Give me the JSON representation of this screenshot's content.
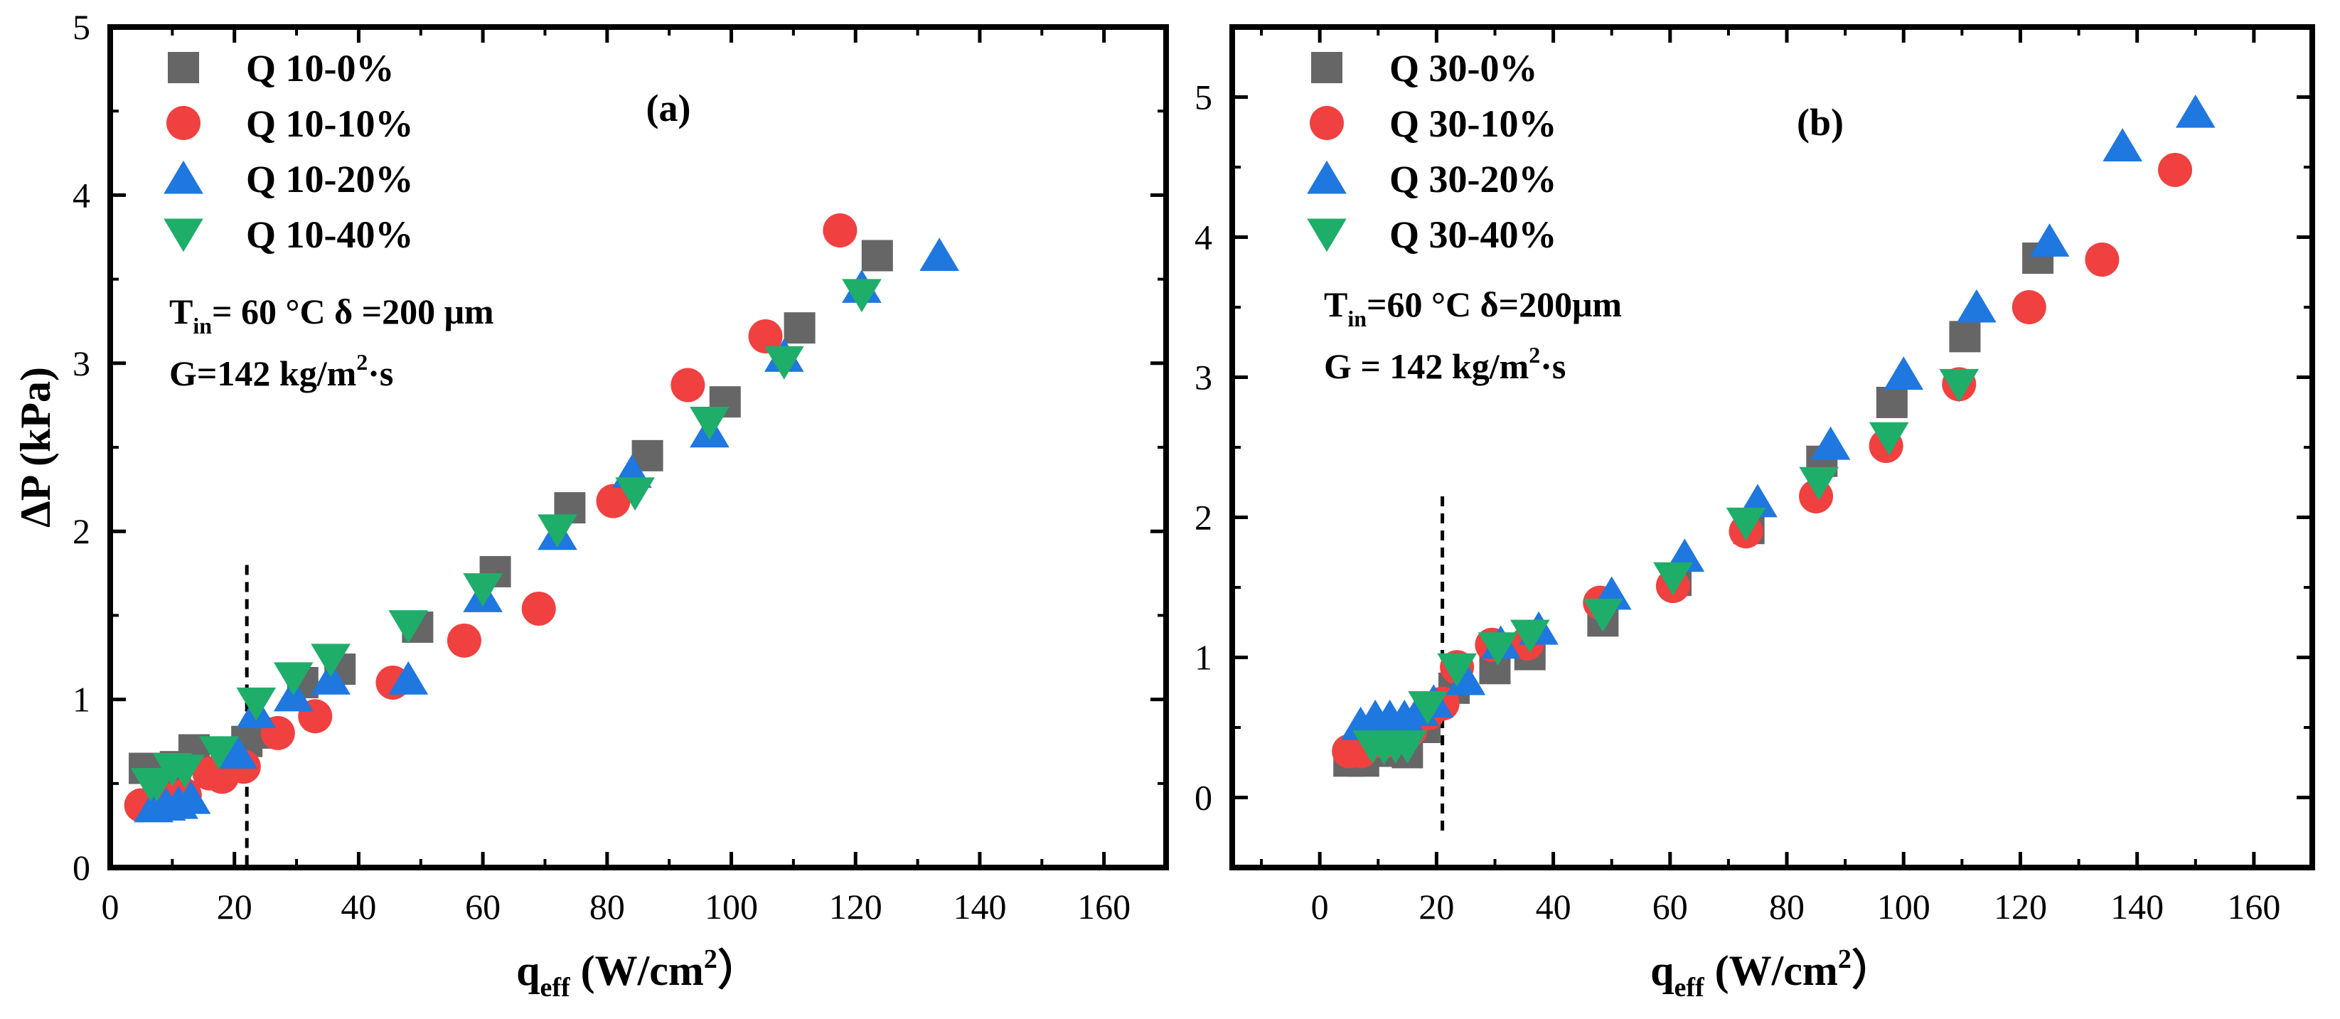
{
  "chart_data": [
    {
      "type": "scatter",
      "panel_label": "(a)",
      "xlabel": {
        "main": "q",
        "sub": "eff",
        "unit_pre": " (W/cm",
        "unit_sup": "2",
        "unit_post": "）"
      },
      "ylabel": "ΔP (kPa)",
      "xlim": [
        0,
        170
      ],
      "ylim": [
        0,
        5
      ],
      "xticks": [
        0,
        20,
        40,
        60,
        80,
        100,
        120,
        140,
        160
      ],
      "yticks": [
        0,
        1,
        2,
        3,
        4,
        5
      ],
      "grid": false,
      "legend_position": "top-left",
      "annotations": {
        "line1": {
          "t": "T",
          "sub": "in",
          "rest": "= 60 °C  δ =200 μm"
        },
        "line2": {
          "pre": "G=142 kg/m",
          "sup": "2",
          "post": "·s"
        }
      },
      "vline_x": 22,
      "vline_ylim": [
        0,
        1.8
      ],
      "series": [
        {
          "name": "Q 10-0%",
          "marker": "square",
          "color": "#666666",
          "points": [
            [
              5.5,
              0.59
            ],
            [
              8,
              0.58
            ],
            [
              10.5,
              0.6
            ],
            [
              13.5,
              0.7
            ],
            [
              20,
              0.68
            ],
            [
              22,
              0.75
            ],
            [
              25,
              0.8
            ],
            [
              31,
              1.1
            ],
            [
              37,
              1.18
            ],
            [
              49.5,
              1.43
            ],
            [
              62,
              1.76
            ],
            [
              74,
              2.14
            ],
            [
              86.5,
              2.45
            ],
            [
              99,
              2.77
            ],
            [
              111,
              3.21
            ],
            [
              123.5,
              3.64
            ]
          ]
        },
        {
          "name": "Q 10-10%",
          "marker": "circle",
          "color": "#f04040",
          "points": [
            [
              5,
              0.37
            ],
            [
              8,
              0.38
            ],
            [
              10.5,
              0.41
            ],
            [
              12,
              0.43
            ],
            [
              16,
              0.56
            ],
            [
              18,
              0.54
            ],
            [
              21.5,
              0.6
            ],
            [
              27,
              0.8
            ],
            [
              33,
              0.9
            ],
            [
              45.5,
              1.1
            ],
            [
              57,
              1.35
            ],
            [
              69,
              1.54
            ],
            [
              81,
              2.18
            ],
            [
              93,
              2.87
            ],
            [
              105.5,
              3.16
            ],
            [
              117.5,
              3.79
            ]
          ]
        },
        {
          "name": "Q 10-20%",
          "marker": "triangle-up",
          "color": "#1f77e0",
          "points": [
            [
              7,
              0.36
            ],
            [
              9,
              0.37
            ],
            [
              11,
              0.38
            ],
            [
              13,
              0.41
            ],
            [
              20.5,
              0.68
            ],
            [
              23.5,
              0.92
            ],
            [
              29.5,
              1.02
            ],
            [
              35.5,
              1.12
            ],
            [
              48,
              1.12
            ],
            [
              60,
              1.61
            ],
            [
              72,
              1.98
            ],
            [
              84,
              2.35
            ],
            [
              96.5,
              2.59
            ],
            [
              108.5,
              3.04
            ],
            [
              121,
              3.45
            ],
            [
              133.5,
              3.64
            ]
          ]
        },
        {
          "name": "Q 10-40%",
          "marker": "triangle-down",
          "color": "#1fae6a",
          "points": [
            [
              6.5,
              0.5
            ],
            [
              7.5,
              0.5
            ],
            [
              10,
              0.59
            ],
            [
              12,
              0.58
            ],
            [
              17.5,
              0.69
            ],
            [
              23.5,
              0.98
            ],
            [
              29.5,
              1.13
            ],
            [
              35.5,
              1.24
            ],
            [
              48,
              1.44
            ],
            [
              60,
              1.66
            ],
            [
              72,
              2.01
            ],
            [
              84.5,
              2.23
            ],
            [
              96.5,
              2.65
            ],
            [
              108.5,
              3.01
            ],
            [
              121,
              3.41
            ]
          ]
        }
      ]
    },
    {
      "type": "scatter",
      "panel_label": "(b)",
      "xlabel": {
        "main": "q",
        "sub": "eff",
        "unit_pre": " (W/cm",
        "unit_sup": "2",
        "unit_post": "）"
      },
      "ylabel": "",
      "xlim": [
        -15,
        170
      ],
      "ylim": [
        -0.5,
        5.5
      ],
      "xticks": [
        0,
        20,
        40,
        60,
        80,
        100,
        120,
        140,
        160
      ],
      "yticks": [
        0,
        1,
        2,
        3,
        4,
        5
      ],
      "grid": false,
      "legend_position": "top-left",
      "annotations": {
        "line1": {
          "t": "T",
          "sub": "in",
          "rest": "=60 °C  δ=200μm"
        },
        "line2": {
          "pre": "G = 142 kg/m",
          "sup": "2",
          "post": "·s"
        }
      },
      "vline_x": 21,
      "vline_ylim": [
        -0.28,
        2.15
      ],
      "series": [
        {
          "name": "Q 30-0%",
          "marker": "square",
          "color": "#666666",
          "points": [
            [
              5,
              0.26
            ],
            [
              7.5,
              0.26
            ],
            [
              10,
              0.33
            ],
            [
              12.5,
              0.33
            ],
            [
              15,
              0.32
            ],
            [
              18,
              0.5
            ],
            [
              23,
              0.78
            ],
            [
              30,
              0.92
            ],
            [
              36,
              1.02
            ],
            [
              48.5,
              1.26
            ],
            [
              61,
              1.55
            ],
            [
              73.5,
              1.92
            ],
            [
              86,
              2.4
            ],
            [
              98,
              2.82
            ],
            [
              110.5,
              3.29
            ],
            [
              123,
              3.85
            ]
          ]
        },
        {
          "name": "Q 30-10%",
          "marker": "circle",
          "color": "#f04040",
          "points": [
            [
              5,
              0.33
            ],
            [
              7,
              0.33
            ],
            [
              9,
              0.4
            ],
            [
              11,
              0.4
            ],
            [
              13,
              0.43
            ],
            [
              15.5,
              0.48
            ],
            [
              18.5,
              0.6
            ],
            [
              21,
              0.67
            ],
            [
              23.5,
              0.93
            ],
            [
              29.5,
              1.09
            ],
            [
              35.5,
              1.1
            ],
            [
              48,
              1.39
            ],
            [
              60.5,
              1.51
            ],
            [
              73,
              1.9
            ],
            [
              85,
              2.15
            ],
            [
              97,
              2.51
            ],
            [
              109.5,
              2.95
            ],
            [
              121.5,
              3.5
            ],
            [
              134,
              3.84
            ],
            [
              146.5,
              4.48
            ]
          ]
        },
        {
          "name": "Q 30-20%",
          "marker": "triangle-up",
          "color": "#1f77e0",
          "points": [
            [
              7,
              0.52
            ],
            [
              9.5,
              0.57
            ],
            [
              12,
              0.57
            ],
            [
              14.5,
              0.57
            ],
            [
              17,
              0.62
            ],
            [
              19.5,
              0.68
            ],
            [
              25,
              0.84
            ],
            [
              31,
              1.1
            ],
            [
              37.5,
              1.2
            ],
            [
              50,
              1.45
            ],
            [
              62.5,
              1.72
            ],
            [
              75,
              2.11
            ],
            [
              87.5,
              2.52
            ],
            [
              100,
              3.02
            ],
            [
              112.5,
              3.5
            ],
            [
              125,
              3.97
            ],
            [
              137.5,
              4.65
            ],
            [
              150,
              4.89
            ]
          ]
        },
        {
          "name": "Q 30-40%",
          "marker": "triangle-down",
          "color": "#1fae6a",
          "points": [
            [
              9,
              0.37
            ],
            [
              11,
              0.36
            ],
            [
              13,
              0.37
            ],
            [
              15,
              0.37
            ],
            [
              18.5,
              0.65
            ],
            [
              23.5,
              0.92
            ],
            [
              30.5,
              1.07
            ],
            [
              36,
              1.16
            ],
            [
              48.5,
              1.31
            ],
            [
              60.5,
              1.57
            ],
            [
              73,
              1.96
            ],
            [
              85.5,
              2.25
            ],
            [
              97.5,
              2.57
            ],
            [
              109.5,
              2.95
            ]
          ]
        }
      ]
    }
  ]
}
